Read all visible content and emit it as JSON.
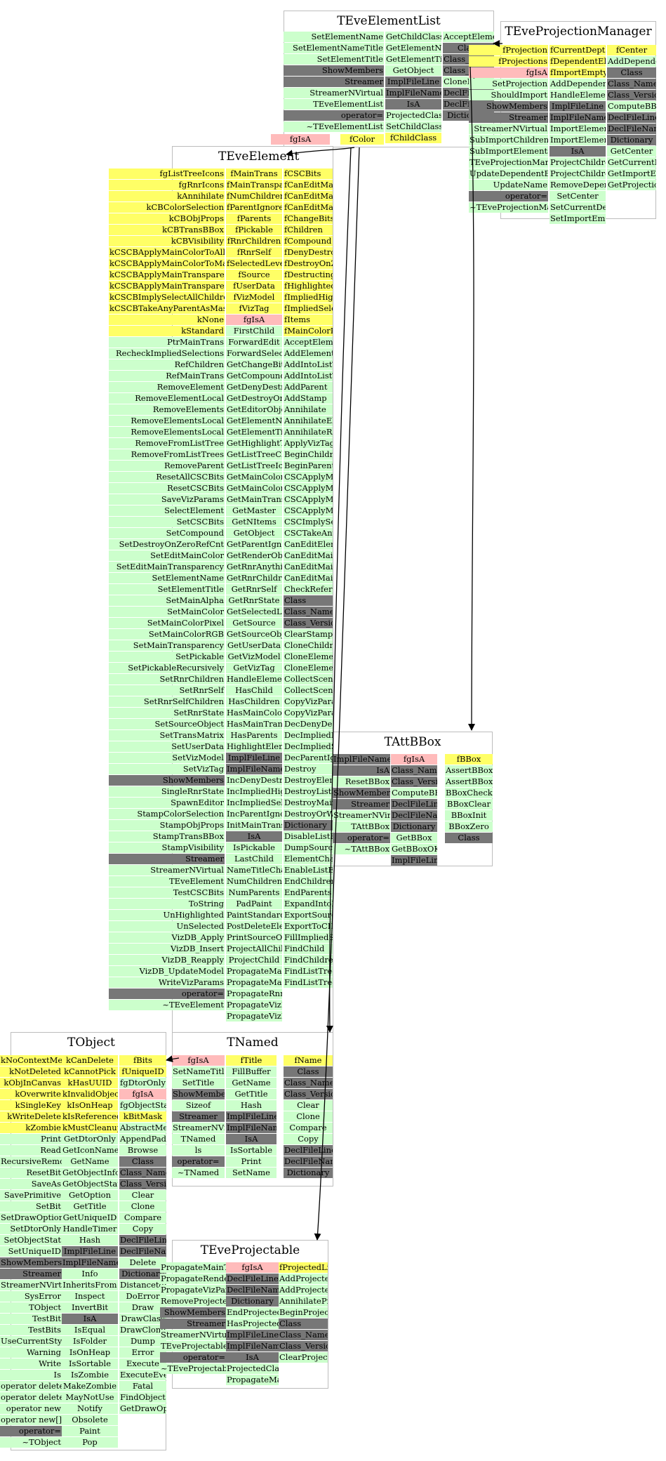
{
  "colors": {
    "green": "#ccffcc",
    "yellow": "#ffff66",
    "pink": "#ffbbbb",
    "gray": "#777777",
    "border": "#bdbdbd",
    "edge": "#000000"
  },
  "classes": [
    {
      "name": "TEveElementList",
      "columns": [
        [
          "SetElementName",
          "SetElementNameTitle",
          "SetElementTitle",
          "ShowMembers",
          "Streamer",
          "StreamerNVirtual",
          "TEveElementList",
          "operator=",
          "~TEveElementList"
        ],
        [
          "GetChildClass",
          "GetElementName",
          "GetElementTitle",
          "GetObject",
          "ImplFileLine",
          "ImplFileName",
          "IsA",
          "ProjectedClass",
          "SetChildClass",
          "fChildClass"
        ],
        [
          "AcceptElement",
          "Class",
          "Class_Name",
          "Class_Version",
          "CloneElement",
          "DeclFileLine",
          "DeclFileName",
          "Dictionary"
        ]
      ],
      "extra": [
        "fgIsA",
        "fColor"
      ]
    },
    {
      "name": "TEveProjectionManager",
      "columns": [
        [
          "fProjection",
          "fProjections",
          "fgIsA",
          "SetProjection",
          "ShouldImport",
          "ShowMembers",
          "Streamer",
          "StreamerNVirtual",
          "SubImportChildren",
          "SubImportElements",
          "TEveProjectionManager",
          "UpdateDependentElsAndScenes",
          "UpdateName",
          "operator=",
          "~TEveProjectionManager"
        ],
        [
          "fCurrentDepth",
          "fDependentEls",
          "fImportEmpty",
          "AddDependent",
          "HandleElementPaste",
          "ImplFileLine",
          "ImplFileName",
          "ImportElements",
          "ImportElementsRecurse",
          "IsA",
          "ProjectChildren",
          "ProjectChildrenRecurse",
          "RemoveDependent",
          "SetCenter",
          "SetCurrentDepth",
          "SetImportEmpty"
        ],
        [
          "fCenter",
          "AddDependent",
          "Class",
          "Class_Name",
          "Class_Version",
          "ComputeBBox",
          "DeclFileLine",
          "DeclFileName",
          "Dictionary",
          "GetCenter",
          "GetCurrentDepth",
          "GetImportEmpty",
          "GetProjection"
        ]
      ]
    },
    {
      "name": "TEveElement",
      "columns": [
        [
          "fgListTreeIcons",
          "fgRnrIcons",
          "kAnnihilate",
          "kCBColorSelection",
          "kCBObjProps",
          "kCBTransBBox",
          "kCBVisibility",
          "kCSCBApplyMainColorToAllChildren",
          "kCSCBApplyMainColorToMatchingChildren",
          "kCSCBApplyMainTransparencyToAllChildren",
          "kCSCBApplyMainTransparencyToMatchingChildren",
          "kCSCBImplySelectAllChildren",
          "kCSCBTakeAnyParentAsMaster",
          "kNone",
          "kStandard",
          "PtrMainTrans",
          "RecheckImpliedSelections",
          "RefChildren",
          "RefMainTrans",
          "RemoveElement",
          "RemoveElementLocal",
          "RemoveElements",
          "RemoveElementsLocal",
          "RemoveElementsLocal",
          "RemoveFromListTree",
          "RemoveFromListTrees",
          "RemoveParent",
          "ResetAllCSCBits",
          "ResetCSCBits",
          "SaveVizParams",
          "SelectElement",
          "SetCSCBits",
          "SetCompound",
          "SetDestroyOnZeroRefCnt",
          "SetEditMainColor",
          "SetEditMainTransparency",
          "SetElementName",
          "SetElementTitle",
          "SetMainAlpha",
          "SetMainColor",
          "SetMainColorPixel",
          "SetMainColorRGB",
          "SetMainTransparency",
          "SetPickable",
          "SetPickableRecursively",
          "SetRnrChildren",
          "SetRnrSelf",
          "SetRnrSelfChildren",
          "SetRnrState",
          "SetSourceObject",
          "SetTransMatrix",
          "SetUserData",
          "SetVizModel",
          "SetVizTag",
          "ShowMembers",
          "SingleRnrState",
          "SpawnEditor",
          "StampColorSelection",
          "StampObjProps",
          "StampTransBBox",
          "StampVisibility",
          "Streamer",
          "StreamerNVirtual",
          "TEveElement",
          "TestCSCBits",
          "ToString",
          "UnHighlighted",
          "UnSelected",
          "VizDB_Apply",
          "VizDB_Insert",
          "VizDB_Reapply",
          "VizDB_UpdateModel",
          "WriteVizParams",
          "operator=",
          "~TEveElement"
        ],
        [
          "fMainTrans",
          "fMainTransparency",
          "fNumChildren",
          "fParentIgnoreCnt",
          "fParents",
          "fPickable",
          "fRnrChildren",
          "fRnrSelf",
          "fSelectedLevel",
          "fSource",
          "fUserData",
          "fVizModel",
          "fVizTag",
          "fgIsA",
          "FirstChild",
          "ForwardEdit",
          "ForwardSelection",
          "GetChangeBits",
          "GetCompound",
          "GetDenyDestroy",
          "GetDestroyOnZeroRefCnt",
          "GetEditorObject",
          "GetElementName",
          "GetElementTitle",
          "GetHighlightTooltip",
          "GetListTreeCheckBoxIcon",
          "GetListTreeIcon",
          "GetMainColor",
          "GetMainColorPtr",
          "GetMainTransparency",
          "GetMaster",
          "GetNItems",
          "GetObject",
          "GetParentIgnoreCnt",
          "GetRenderObject",
          "GetRnrAnything",
          "GetRnrChildren",
          "GetRnrSelf",
          "GetRnrState",
          "GetSelectedLevel",
          "GetSource",
          "GetSourceObject",
          "GetUserData",
          "GetVizModel",
          "GetVizTag",
          "HandleElementPaste",
          "HasChild",
          "HasChildren",
          "HasMainColor",
          "HasMainTrans",
          "HasParents",
          "HighlightElement",
          "ImplFileLine",
          "ImplFileName",
          "IncDenyDestroy",
          "IncImpliedHighlighted",
          "IncImpliedSelected",
          "IncParentIgnoreCnt",
          "InitMainTrans",
          "IsA",
          "IsPickable",
          "LastChild",
          "NameTitleChanged",
          "NumChildren",
          "NumParents",
          "PadPaint",
          "PaintStandard",
          "PostDeleteElement",
          "PrintSourceObject",
          "ProjectAllChildren",
          "ProjectChild",
          "PropagateMainColorToProjecteds",
          "PropagateMainTransparencyToProjecteds",
          "PropagateRnrStateToProjecteds",
          "PropagateVizParamsToElements",
          "PropagateVizParamsToProjecteds"
        ],
        [
          "fCSCBits",
          "fCanEditMainColor",
          "fCanEditMainTrans",
          "fCanEditMainTransparency",
          "fChangeBits",
          "fChildren",
          "fCompound",
          "fDenyDestroy",
          "fDestroyOnZeroRefCnt",
          "fDestructing",
          "fHighlighted",
          "fImpliedHighlighted",
          "fImpliedSelected",
          "fItems",
          "fMainColorPtr",
          "AcceptElement",
          "AddElement",
          "AddIntoListTree",
          "AddIntoListTrees",
          "AddParent",
          "AddStamp",
          "Annihilate",
          "AnnihilateElements",
          "AnnihilateRecursively",
          "ApplyVizTag",
          "BeginChildren",
          "BeginParents",
          "CSCApplyMainColorToAllChildren",
          "CSCApplyMainColorToMatchingChildren",
          "CSCApplyMainTransparencyToAllChildren",
          "CSCApplyMainTransparencyToMatchingChildren",
          "CSCImplySelectAllChildren",
          "CSCTakeAnyParentAsMaster",
          "CanEditElement",
          "CanEditMainColor",
          "CanEditMainTrans",
          "CanEditMainTransparency",
          "CheckReferenceCount",
          "Class",
          "Class_Name",
          "Class_Version",
          "ClearStamps",
          "CloneChildrenRecurse",
          "CloneElement",
          "CloneElementRecurse",
          "CollectSceneParents",
          "CollectSceneParentsFromChildren",
          "CopyVizParams",
          "CopyVizParamsFromDB",
          "DecDenyDestroy",
          "DecImpliedHighlighted",
          "DecImpliedSelected",
          "DecParentIgnoreCnt",
          "Destroy",
          "DestroyElements",
          "DestroyListSubTree",
          "DestroyMainTrans",
          "DestroyOrWarn",
          "Dictionary",
          "DisableListElements",
          "DumpSourceObject",
          "ElementChanged",
          "EnableListElements",
          "EndChildren",
          "EndParents",
          "ExpandIntoListTree",
          "ExportSourceObjectToCINT",
          "ExportToCINT",
          "FillImpliedSelectedSet",
          "FindChild",
          "FindChildren",
          "FindListTreeItem",
          "FindListTreeModel"
        ]
      ]
    },
    {
      "name": "TAttBBox",
      "columns": [
        [
          "ImplFileName",
          "IsA",
          "ResetBBox",
          "ShowMembers",
          "Streamer",
          "StreamerNVirtual",
          "TAttBBox",
          "operator=",
          "~TAttBBox"
        ],
        [
          "fgIsA",
          "Class_Name",
          "Class_Version",
          "ComputeBBox",
          "DeclFileLine",
          "DeclFileName",
          "Dictionary",
          "GetBBox",
          "GetBBoxOK",
          "ImplFileLine"
        ],
        [
          "fBBox",
          "AssertBBox",
          "AssertBBoxExtents",
          "BBoxCheckPoint",
          "BBoxClear",
          "BBoxInit",
          "BBoxZero",
          "Class"
        ]
      ]
    },
    {
      "name": "TObject",
      "columns": [
        [
          "kNoContextMenu",
          "kNotDeleted",
          "kObjInCanvas",
          "kOverwrite",
          "kSingleKey",
          "kWriteDelete",
          "kZombie",
          "Print",
          "Read",
          "RecursiveRemove",
          "ResetBit",
          "SaveAs",
          "SavePrimitive",
          "SetBit",
          "SetDrawOption",
          "SetDtorOnly",
          "SetObjectStat",
          "SetUniqueID",
          "ShowMembers",
          "Streamer",
          "StreamerNVirtual",
          "SysError",
          "TObject",
          "TestBit",
          "TestBits",
          "UseCurrentStyle",
          "Warning",
          "Write",
          "Is",
          "operator delete",
          "operator delete[]",
          "operator new",
          "operator new[]",
          "operator=",
          "~TObject"
        ],
        [
          "kCanDelete",
          "kCannotPick",
          "kHasUUID",
          "kInvalidObject",
          "kIsOnHeap",
          "kIsReferenced",
          "kMustCleanup",
          "GetDtorOnly",
          "GetIconName",
          "GetName",
          "GetObjectInfo",
          "GetObjectStat",
          "GetOption",
          "GetTitle",
          "GetUniqueID",
          "HandleTimer",
          "Hash",
          "ImplFileLine",
          "ImplFileName",
          "Info",
          "InheritsFrom",
          "Inspect",
          "InvertBit",
          "IsA",
          "IsEqual",
          "IsFolder",
          "IsOnHeap",
          "IsSortable",
          "IsZombie",
          "MakeZombie",
          "MayNotUse",
          "Notify",
          "Obsolete",
          "Paint",
          "Pop"
        ],
        [
          "fBits",
          "fUniqueID",
          "fgDtorOnly",
          "fgIsA",
          "fgObjectStat",
          "kBitMask",
          "AbstractMethod",
          "AppendPad",
          "Browse",
          "Class",
          "Class_Name",
          "Class_Version",
          "Clear",
          "Clone",
          "Compare",
          "Copy",
          "DeclFileLine",
          "DeclFileName",
          "Delete",
          "Dictionary",
          "DistancetoPrimitive",
          "DoError",
          "Draw",
          "DrawClass",
          "DrawClone",
          "Dump",
          "Error",
          "Execute",
          "ExecuteEvent",
          "Fatal",
          "FindObject",
          "GetDrawOption"
        ]
      ]
    },
    {
      "name": "TNamed",
      "columns": [
        [
          "fgIsA",
          "SetNameTitle",
          "SetTitle",
          "ShowMembers",
          "Sizeof",
          "Streamer",
          "StreamerNVirtual",
          "TNamed",
          "ls",
          "operator=",
          "~TNamed"
        ],
        [
          "fTitle",
          "FillBuffer",
          "GetName",
          "GetTitle",
          "Hash",
          "ImplFileLine",
          "ImplFileName",
          "IsA",
          "IsSortable",
          "Print",
          "SetName"
        ],
        [
          "fName",
          "Class",
          "Class_Name",
          "Class_Version",
          "Clear",
          "Clone",
          "Compare",
          "Copy",
          "DeclFileLine",
          "DeclFileName",
          "Dictionary"
        ]
      ]
    },
    {
      "name": "TEveProjectable",
      "columns": [
        [
          "PropagateMainTransparency",
          "PropagateRenderState",
          "PropagateVizParams",
          "RemoveProjected",
          "ShowMembers",
          "Streamer",
          "StreamerNVirtual",
          "TEveProjectable",
          "operator=",
          "~TEveProjectable"
        ],
        [
          "fgIsA",
          "DeclFileLine",
          "DeclFileName",
          "Dictionary",
          "EndProjecteds",
          "HasProjecteds",
          "ImplFileLine",
          "ImplFileName",
          "IsA",
          "ProjectedClass",
          "PropagateMainColor"
        ],
        [
          "fProjectedList",
          "AddProjected",
          "AddProjectedsToSet",
          "AnnihilateProjecteds",
          "BeginProjecteds",
          "Class",
          "Class_Name",
          "Class_Version",
          "ClearProjectedList"
        ]
      ]
    }
  ]
}
